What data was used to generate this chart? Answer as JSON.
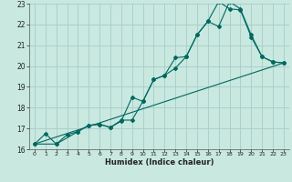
{
  "xlabel": "Humidex (Indice chaleur)",
  "bg_color": "#c8e8e0",
  "grid_color": "#a8ccc8",
  "line_color": "#006860",
  "xlim": [
    -0.5,
    23.5
  ],
  "ylim": [
    16,
    23
  ],
  "xticks": [
    0,
    1,
    2,
    3,
    4,
    5,
    6,
    7,
    8,
    9,
    10,
    11,
    12,
    13,
    14,
    15,
    16,
    17,
    18,
    19,
    20,
    21,
    22,
    23
  ],
  "yticks": [
    16,
    17,
    18,
    19,
    20,
    21,
    22,
    23
  ],
  "curve1_x": [
    0,
    1,
    2,
    3,
    4,
    5,
    6,
    7,
    8,
    9,
    10,
    11,
    12,
    13,
    14,
    15,
    16,
    17,
    18,
    19,
    20,
    21,
    22,
    23
  ],
  "curve1_y": [
    16.25,
    16.75,
    16.25,
    16.7,
    16.85,
    17.15,
    17.2,
    17.05,
    17.35,
    18.5,
    18.3,
    19.35,
    19.55,
    19.9,
    20.45,
    21.5,
    22.15,
    21.9,
    23.1,
    22.75,
    21.5,
    20.45,
    20.2,
    20.15
  ],
  "curve2_x": [
    0,
    2,
    4,
    5,
    6,
    7,
    8,
    9,
    10,
    11,
    12,
    13,
    14,
    15,
    16,
    17,
    18,
    19,
    20,
    21,
    22,
    23
  ],
  "curve2_y": [
    16.25,
    16.25,
    16.85,
    17.15,
    17.2,
    17.05,
    17.4,
    17.4,
    18.3,
    19.35,
    19.55,
    20.4,
    20.45,
    21.5,
    22.15,
    23.1,
    22.75,
    22.7,
    21.4,
    20.45,
    20.2,
    20.15
  ],
  "curve3_x": [
    0,
    23
  ],
  "curve3_y": [
    16.25,
    20.15
  ]
}
